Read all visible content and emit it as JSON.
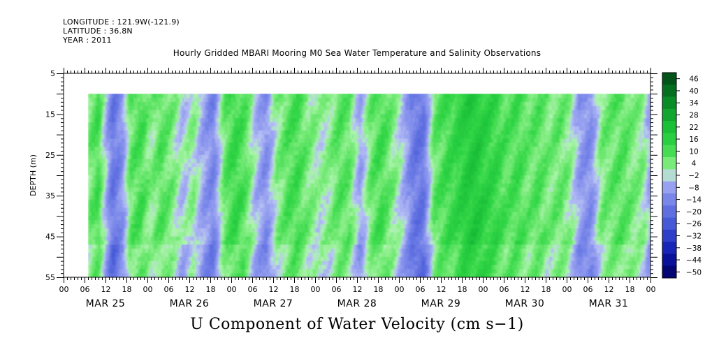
{
  "header": {
    "longitude": "LONGITUDE : 121.9W(-121.9)",
    "latitude": "LATITUDE : 36.8N",
    "year": "YEAR : 2011"
  },
  "chart_data": {
    "type": "heatmap",
    "title": "Hourly Gridded MBARI Mooring M0 Sea Water Temperature and Salinity Observations",
    "xlabel": "U Component of Water Velocity (cm s−1)",
    "ylabel": "DEPTH (m)",
    "ylim": [
      5,
      55
    ],
    "y_inverted": true,
    "y_ticks": [
      5,
      15,
      25,
      35,
      45,
      55
    ],
    "x_hours_range": [
      0,
      168
    ],
    "x_hour_tick_labels": [
      "00",
      "06",
      "12",
      "18"
    ],
    "x_hour_tick_step": 6,
    "x_days": [
      "MAR 25",
      "MAR 26",
      "MAR 27",
      "MAR 28",
      "MAR 29",
      "MAR 30",
      "MAR 31"
    ],
    "data_depth_range": [
      10,
      55
    ],
    "data_start_hour": 7,
    "data_end_hour": 168,
    "colorbar": {
      "labels": [
        46,
        40,
        34,
        28,
        22,
        16,
        10,
        4,
        -2,
        -8,
        -14,
        -20,
        -26,
        -32,
        -38,
        -44,
        -50
      ],
      "range": [
        -50,
        50
      ]
    },
    "u_velocity_profile": {
      "hours": [
        7,
        10,
        14,
        17,
        19,
        22,
        25,
        28,
        31,
        34,
        37,
        40,
        43,
        46,
        49,
        52,
        55,
        58,
        61,
        64,
        67,
        70,
        73,
        76,
        79,
        82,
        85,
        88,
        91,
        94,
        97,
        100,
        103,
        106,
        109,
        112,
        115,
        118,
        121,
        124,
        127,
        130,
        133,
        136,
        139,
        142,
        145,
        148,
        151,
        154,
        157,
        160,
        163,
        166,
        168
      ],
      "depth_mean_cm_s": [
        6,
        12,
        -16,
        -8,
        8,
        12,
        4,
        10,
        6,
        -2,
        4,
        -6,
        -12,
        8,
        14,
        10,
        -2,
        -10,
        4,
        10,
        12,
        6,
        2,
        4,
        10,
        8,
        -6,
        8,
        12,
        6,
        -2,
        -14,
        -16,
        8,
        12,
        14,
        18,
        20,
        16,
        14,
        10,
        12,
        8,
        10,
        6,
        8,
        4,
        -8,
        -10,
        6,
        8,
        10,
        6,
        4,
        -6
      ]
    }
  }
}
